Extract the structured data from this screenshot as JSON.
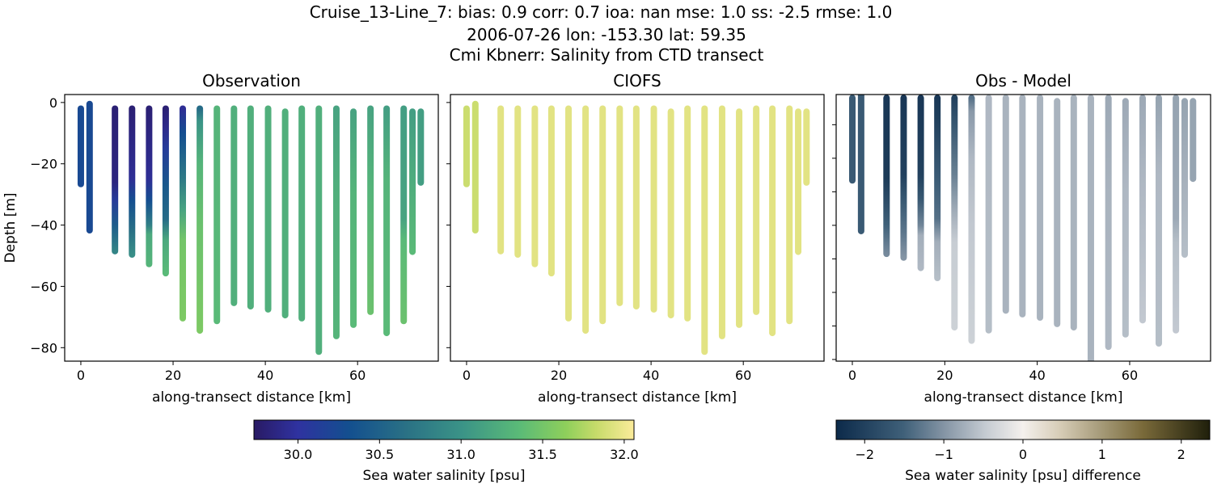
{
  "title_lines": [
    "Cruise_13-Line_7: bias: 0.9  corr: 0.7  ioa: nan  mse: 1.0  ss: -2.5  rmse: 1.0",
    "2006-07-26 lon: -153.30 lat: 59.35",
    "Cmi Kbnerr: Salinity from CTD transect"
  ],
  "chart_data": {
    "type": "scatter",
    "panels": [
      {
        "title": "Observation",
        "xlabel": "along-transect distance [km]",
        "ylabel": "Depth [m]",
        "field": "obs",
        "xlim": [
          -3.5,
          77.5
        ],
        "ylim": [
          -84.4,
          2.6
        ],
        "xticks": [
          0,
          20,
          40,
          60
        ],
        "yticks": [
          0,
          -20,
          -40,
          -60,
          -80
        ],
        "ytick_labels": [
          "0",
          "−20",
          "−40",
          "−60",
          "−80"
        ],
        "show_ytick_labels": true
      },
      {
        "title": "CIOFS",
        "xlabel": "along-transect distance [km]",
        "field": "model",
        "xlim": [
          -3.5,
          77.5
        ],
        "ylim": [
          -84.4,
          2.6
        ],
        "xticks": [
          0,
          20,
          40,
          60
        ],
        "yticks": [
          0,
          -20,
          -40,
          -60,
          -80
        ],
        "show_ytick_labels": false
      },
      {
        "title": "Obs - Model",
        "xlabel": "along-transect distance [km]",
        "field": "diff",
        "xlim": [
          -3.5,
          77.5
        ],
        "ylim": [
          -80.5,
          -1
        ],
        "xticks": [
          0,
          20,
          40,
          60
        ],
        "yticks": [
          -10,
          -20,
          -30,
          -40,
          -50,
          -60,
          -70,
          -80
        ],
        "show_ytick_labels": false
      }
    ],
    "xtick_labels": [
      "0",
      "20",
      "40",
      "60"
    ],
    "profiles": [
      {
        "x": 0.0,
        "top": -2,
        "bottom": -26.6,
        "model": 31.85,
        "obs": [
          [
            -2,
            30.25
          ],
          [
            -26.6,
            30.25
          ]
        ]
      },
      {
        "x": 1.9,
        "top": -0.5,
        "bottom": -41.7,
        "model": 31.85,
        "obs": [
          [
            -0.5,
            30.25
          ],
          [
            -41.7,
            30.25
          ]
        ]
      },
      {
        "x": 7.4,
        "top": -2,
        "bottom": -48.5,
        "model": 31.95,
        "obs": [
          [
            -2,
            29.8
          ],
          [
            -26,
            29.85
          ],
          [
            -32,
            30.1
          ],
          [
            -40,
            30.45
          ],
          [
            -48.5,
            30.85
          ]
        ]
      },
      {
        "x": 11.1,
        "top": -2,
        "bottom": -49.6,
        "model": 31.95,
        "obs": [
          [
            -2,
            29.8
          ],
          [
            -25,
            29.95
          ],
          [
            -32,
            30.3
          ],
          [
            -42,
            30.65
          ],
          [
            -49.6,
            30.95
          ]
        ]
      },
      {
        "x": 14.8,
        "top": -2,
        "bottom": -52.7,
        "model": 31.95,
        "obs": [
          [
            -2,
            29.8
          ],
          [
            -25,
            29.95
          ],
          [
            -32,
            30.3
          ],
          [
            -40,
            30.8
          ],
          [
            -43,
            31.2
          ],
          [
            -52.7,
            31.3
          ]
        ]
      },
      {
        "x": 18.4,
        "top": -2,
        "bottom": -55.7,
        "model": 31.95,
        "obs": [
          [
            -2,
            29.8
          ],
          [
            -8,
            29.9
          ],
          [
            -15,
            30.1
          ],
          [
            -27,
            30.4
          ],
          [
            -38,
            30.6
          ],
          [
            -45,
            31.2
          ],
          [
            -55.7,
            31.35
          ]
        ]
      },
      {
        "x": 22.1,
        "top": -2,
        "bottom": -70.4,
        "model": 31.95,
        "obs": [
          [
            -2,
            29.95
          ],
          [
            -10,
            30.3
          ],
          [
            -25,
            30.75
          ],
          [
            -35,
            31.15
          ],
          [
            -45,
            31.5
          ],
          [
            -70.4,
            31.55
          ]
        ]
      },
      {
        "x": 25.8,
        "top": -2,
        "bottom": -74.4,
        "model": 31.95,
        "obs": [
          [
            -2,
            30.6
          ],
          [
            -6,
            31.0
          ],
          [
            -20,
            31.3
          ],
          [
            -40,
            31.45
          ],
          [
            -74.4,
            31.55
          ]
        ]
      },
      {
        "x": 29.5,
        "top": -2,
        "bottom": -71.3,
        "model": 31.95,
        "obs": [
          [
            -2,
            31.3
          ],
          [
            -71.3,
            31.35
          ]
        ]
      },
      {
        "x": 33.2,
        "top": -2,
        "bottom": -65.4,
        "model": 31.95,
        "obs": [
          [
            -2,
            31.25
          ],
          [
            -65.4,
            31.25
          ]
        ]
      },
      {
        "x": 36.8,
        "top": -2,
        "bottom": -66.5,
        "model": 31.95,
        "obs": [
          [
            -2,
            31.25
          ],
          [
            -66.5,
            31.25
          ]
        ]
      },
      {
        "x": 40.6,
        "top": -2,
        "bottom": -67.5,
        "model": 31.95,
        "obs": [
          [
            -2,
            31.25
          ],
          [
            -67.5,
            31.25
          ]
        ]
      },
      {
        "x": 44.3,
        "top": -3,
        "bottom": -69.4,
        "model": 31.95,
        "obs": [
          [
            -3,
            31.25
          ],
          [
            -69.4,
            31.25
          ]
        ]
      },
      {
        "x": 47.9,
        "top": -2,
        "bottom": -70.4,
        "model": 31.95,
        "obs": [
          [
            -2,
            31.25
          ],
          [
            -70.4,
            31.25
          ]
        ]
      },
      {
        "x": 51.6,
        "top": -2,
        "bottom": -81.3,
        "model": 31.95,
        "obs": [
          [
            -2,
            31.25
          ],
          [
            -81.3,
            31.25
          ]
        ]
      },
      {
        "x": 55.4,
        "top": -2,
        "bottom": -76.2,
        "model": 31.95,
        "obs": [
          [
            -2,
            31.15
          ],
          [
            -30,
            31.25
          ],
          [
            -76.2,
            31.3
          ]
        ]
      },
      {
        "x": 59.1,
        "top": -3,
        "bottom": -72.5,
        "model": 31.95,
        "obs": [
          [
            -3,
            31.15
          ],
          [
            -30,
            31.3
          ],
          [
            -72.5,
            31.35
          ]
        ]
      },
      {
        "x": 62.8,
        "top": -2,
        "bottom": -68.3,
        "model": 31.95,
        "obs": [
          [
            -2,
            31.15
          ],
          [
            -28,
            31.3
          ],
          [
            -68.3,
            31.45
          ]
        ]
      },
      {
        "x": 66.3,
        "top": -2,
        "bottom": -75.2,
        "model": 31.95,
        "obs": [
          [
            -2,
            31.1
          ],
          [
            -25,
            31.3
          ],
          [
            -75.2,
            31.35
          ]
        ]
      },
      {
        "x": 70.0,
        "top": -2,
        "bottom": -71.3,
        "model": 31.95,
        "obs": [
          [
            -2,
            31.1
          ],
          [
            -38,
            31.15
          ],
          [
            -45,
            31.35
          ],
          [
            -71.3,
            31.45
          ]
        ]
      },
      {
        "x": 71.9,
        "top": -3,
        "bottom": -48.7,
        "model": 31.95,
        "obs": [
          [
            -3,
            31.1
          ],
          [
            -30,
            31.25
          ],
          [
            -48.7,
            31.35
          ]
        ]
      },
      {
        "x": 73.7,
        "top": -3,
        "bottom": -26.1,
        "model": 31.95,
        "obs": [
          [
            -3,
            31.1
          ],
          [
            -26.1,
            31.1
          ]
        ]
      }
    ],
    "colorbars": [
      {
        "label": "Sea water salinity [psu]",
        "range": [
          29.73,
          32.06
        ],
        "ticks": [
          30.0,
          30.5,
          31.0,
          31.5,
          32.0
        ],
        "tick_labels": [
          "30.0",
          "30.5",
          "31.0",
          "31.5",
          "32.0"
        ]
      },
      {
        "label": "Sea water salinity [psu] difference",
        "range": [
          -2.36,
          2.36
        ],
        "ticks": [
          -2,
          -1,
          0,
          1,
          2
        ],
        "tick_labels": [
          "−2",
          "−1",
          "0",
          "1",
          "2"
        ]
      }
    ]
  }
}
